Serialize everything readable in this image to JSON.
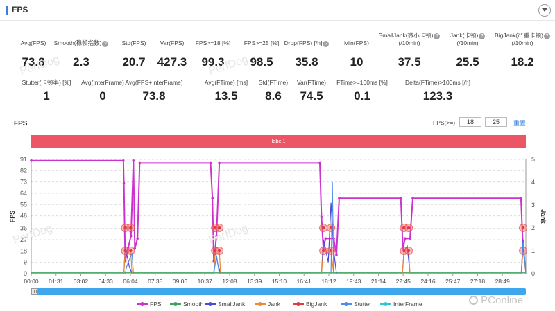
{
  "panel": {
    "title": "FPS"
  },
  "stats_row1": [
    {
      "label": "Avg(FPS)",
      "value": "73.8",
      "help": false
    },
    {
      "label": "Smooth(稳帧指数)",
      "value": "2.3",
      "help": true
    },
    {
      "label": "Std(FPS)",
      "value": "20.7",
      "help": false
    },
    {
      "label": "Var(FPS)",
      "value": "427.3",
      "help": false
    },
    {
      "label": "FPS>=18 [%]",
      "value": "99.3",
      "help": false
    },
    {
      "label": "FPS>=25 [%]",
      "value": "98.5",
      "help": false
    },
    {
      "label": "Drop(FPS) [/h]",
      "value": "35.8",
      "help": true
    },
    {
      "label": "Min(FPS)",
      "value": "10",
      "help": false
    },
    {
      "label": "SmallJank(微小卡顿)",
      "label2": "(/10min)",
      "value": "37.5",
      "help": true
    },
    {
      "label": "Jank(卡顿)",
      "label2": "(/10min)",
      "value": "25.5",
      "help": true
    },
    {
      "label": "BigJank(严重卡顿)",
      "label2": "(/10min)",
      "value": "18.2",
      "help": true
    }
  ],
  "stats_row2": [
    {
      "label": "Stutter(卡顿率) [%]",
      "value": "1"
    },
    {
      "label": "Avg(InterFrame)",
      "value": "0"
    },
    {
      "label": "Avg(FPS+InterFrame)",
      "value": "73.8"
    },
    {
      "label": "Avg(FTime) [ms]",
      "value": "13.5"
    },
    {
      "label": "Std(FTime)",
      "value": "8.6"
    },
    {
      "label": "Var(FTime)",
      "value": "74.5"
    },
    {
      "label": "FTime>=100ms [%]",
      "value": "0.1"
    },
    {
      "label": "Delta(FTime)>100ms [/h]",
      "value": "123.3"
    }
  ],
  "chart_title": "FPS",
  "threshold": {
    "label": "FPS(>=)",
    "value1": "18",
    "value2": "25",
    "reset_label": "重置"
  },
  "label_bar": "label1",
  "watermark": {
    "text": "PerfDog",
    "site": "PConline"
  },
  "chart_data": {
    "type": "line",
    "xlabel": "",
    "ylabel": "FPS",
    "y2label": "Jank",
    "ylim": [
      0,
      91
    ],
    "y2lim": [
      0,
      5
    ],
    "yticks": [
      0,
      9,
      18,
      27,
      36,
      46,
      55,
      64,
      73,
      82,
      91
    ],
    "y2ticks": [
      0,
      1,
      2,
      3,
      4,
      5
    ],
    "x_tick_labels": [
      "00:00",
      "01:31",
      "03:02",
      "04:33",
      "06:04",
      "07:35",
      "09:06",
      "10:37",
      "12:08",
      "13:39",
      "15:10",
      "16:41",
      "18:12",
      "19:43",
      "21:14",
      "22:45",
      "24:16",
      "25:47",
      "27:18",
      "28:49"
    ],
    "grid": true,
    "legend_position": "bottom",
    "series": [
      {
        "name": "FPS",
        "color": "#cc33cc",
        "axis": "left",
        "points": [
          [
            "00:00",
            90
          ],
          [
            "05:38",
            90
          ],
          [
            "05:40",
            72
          ],
          [
            "05:45",
            10
          ],
          [
            "05:55",
            20
          ],
          [
            "06:06",
            30
          ],
          [
            "06:15",
            90
          ],
          [
            "06:20",
            20
          ],
          [
            "06:30",
            28
          ],
          [
            "06:38",
            88
          ],
          [
            "10:58",
            88
          ],
          [
            "11:05",
            60
          ],
          [
            "11:10",
            10
          ],
          [
            "11:20",
            30
          ],
          [
            "11:30",
            88
          ],
          [
            "17:39",
            88
          ],
          [
            "17:45",
            45
          ],
          [
            "17:52",
            20
          ],
          [
            "18:00",
            28
          ],
          [
            "18:30",
            28
          ],
          [
            "18:40",
            15
          ],
          [
            "18:50",
            60
          ],
          [
            "22:36",
            60
          ],
          [
            "22:44",
            20
          ],
          [
            "22:52",
            28
          ],
          [
            "23:10",
            28
          ],
          [
            "23:20",
            60
          ],
          [
            "29:57",
            60
          ],
          [
            "30:05",
            18
          ]
        ]
      },
      {
        "name": "Smooth",
        "color": "#3aa55a",
        "axis": "right",
        "points": [
          [
            "00:00",
            0.05
          ],
          [
            "30:15",
            0.05
          ]
        ]
      },
      {
        "name": "SmallJank",
        "color": "#4a4ad8",
        "axis": "right",
        "points": [
          [
            "00:00",
            0
          ],
          [
            "05:40",
            0
          ],
          [
            "05:45",
            1.2
          ],
          [
            "06:00",
            0.3
          ],
          [
            "06:10",
            0
          ],
          [
            "11:10",
            0
          ],
          [
            "11:15",
            1
          ],
          [
            "11:25",
            0.4
          ],
          [
            "11:35",
            0
          ],
          [
            "17:45",
            0
          ],
          [
            "17:52",
            1.5
          ],
          [
            "18:10",
            0.5
          ],
          [
            "18:20",
            3.1
          ],
          [
            "18:30",
            1
          ],
          [
            "18:40",
            0
          ],
          [
            "22:42",
            0
          ],
          [
            "22:48",
            1
          ],
          [
            "23:00",
            1.2
          ],
          [
            "23:10",
            0
          ],
          [
            "29:58",
            0
          ],
          [
            "30:05",
            1.5
          ],
          [
            "30:15",
            0
          ]
        ]
      },
      {
        "name": "Jank",
        "color": "#f08a30",
        "axis": "right",
        "points": [
          [
            "00:00",
            0
          ],
          [
            "05:40",
            0
          ],
          [
            "05:45",
            1
          ],
          [
            "06:05",
            1
          ],
          [
            "06:10",
            0
          ],
          [
            "11:10",
            0
          ],
          [
            "11:15",
            1
          ],
          [
            "11:30",
            1
          ],
          [
            "11:35",
            0
          ],
          [
            "17:45",
            0
          ],
          [
            "17:52",
            1
          ],
          [
            "18:20",
            1
          ],
          [
            "18:30",
            0
          ],
          [
            "22:42",
            0
          ],
          [
            "22:48",
            1
          ],
          [
            "23:05",
            1
          ],
          [
            "23:10",
            0
          ],
          [
            "29:58",
            0
          ],
          [
            "30:05",
            1
          ],
          [
            "30:15",
            0
          ]
        ]
      },
      {
        "name": "BigJank",
        "color": "#e03a3a",
        "axis": "right",
        "points": [
          [
            "05:45",
            2
          ],
          [
            "06:05",
            2
          ],
          [
            "05:45",
            1
          ],
          [
            "06:05",
            1
          ],
          [
            "11:15",
            2
          ],
          [
            "11:30",
            2
          ],
          [
            "11:15",
            1
          ],
          [
            "11:30",
            1
          ],
          [
            "17:52",
            2
          ],
          [
            "18:20",
            2
          ],
          [
            "17:52",
            1
          ],
          [
            "18:20",
            1
          ],
          [
            "22:48",
            2
          ],
          [
            "23:05",
            2
          ],
          [
            "22:48",
            1
          ],
          [
            "23:05",
            1
          ],
          [
            "30:05",
            2
          ],
          [
            "30:05",
            1
          ]
        ]
      },
      {
        "name": "Stutter",
        "color": "#4f8ee8",
        "axis": "right",
        "points": [
          [
            "00:00",
            0
          ],
          [
            "05:45",
            0
          ],
          [
            "05:50",
            0.3
          ],
          [
            "06:10",
            0.9
          ],
          [
            "06:15",
            0
          ],
          [
            "11:10",
            0
          ],
          [
            "11:20",
            0.8
          ],
          [
            "11:30",
            0
          ],
          [
            "18:20",
            0
          ],
          [
            "18:25",
            4
          ],
          [
            "18:30",
            0
          ],
          [
            "29:58",
            0
          ],
          [
            "30:05",
            1.4
          ],
          [
            "30:15",
            0
          ]
        ]
      },
      {
        "name": "InterFrame",
        "color": "#2dc6d6",
        "axis": "right",
        "points": [
          [
            "00:00",
            0
          ],
          [
            "30:15",
            0
          ]
        ]
      }
    ]
  }
}
